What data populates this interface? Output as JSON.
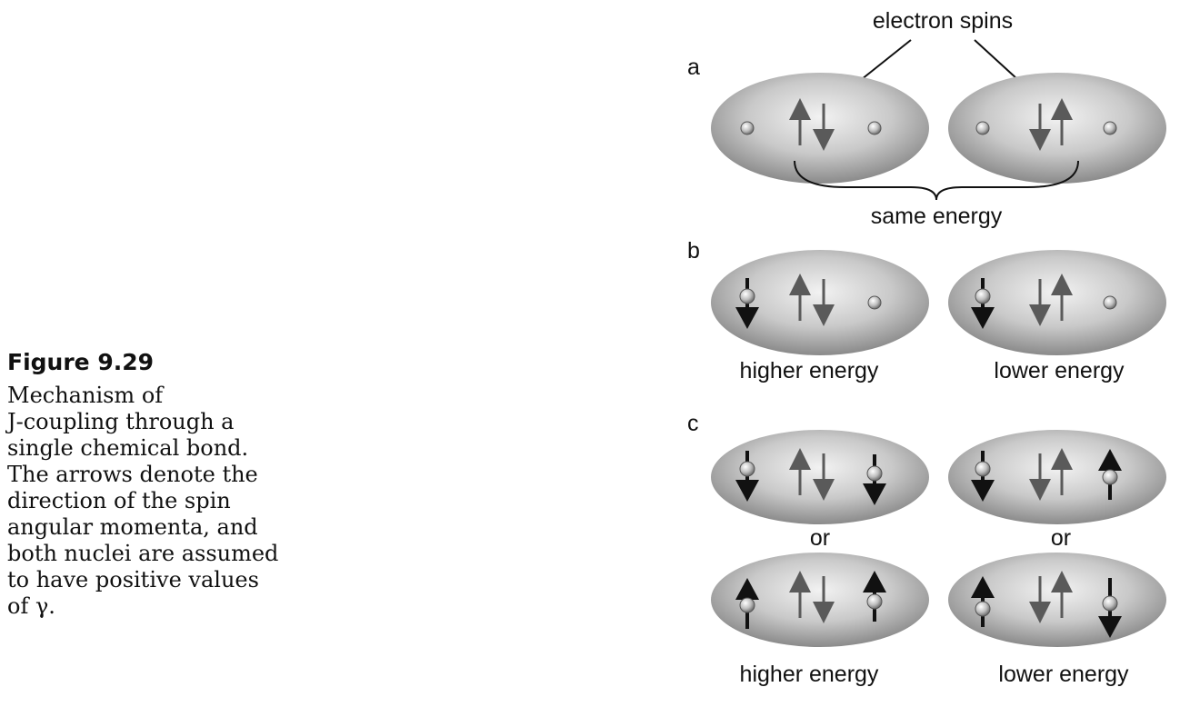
{
  "caption": {
    "title": "Figure 9.29",
    "lines": [
      "Mechanism of",
      "J-coupling through a",
      "single chemical bond.",
      "The arrows denote the",
      "direction of the spin",
      "angular momenta, and",
      "both nuclei are assumed",
      "to have positive values",
      "of γ."
    ]
  },
  "figure": {
    "top_label": "electron spins",
    "panel_labels": {
      "a": "a",
      "b": "b",
      "c": "c"
    },
    "a_brace_label": "same energy",
    "b_left_label": "higher energy",
    "b_right_label": "lower energy",
    "c_or_left": "or",
    "c_or_right": "or",
    "c_left_label": "higher energy",
    "c_right_label": "lower energy"
  },
  "colors": {
    "orbital_center": "#f2f2f2",
    "orbital_edge": "#8a8a8a",
    "electron_arrow": "#5a5a5a",
    "nuclear_arrow": "#111111"
  },
  "icons": [
    "electron-spin-up-arrow-icon",
    "electron-spin-down-arrow-icon",
    "nucleus-icon",
    "nuclear-spin-arrow-icon"
  ]
}
